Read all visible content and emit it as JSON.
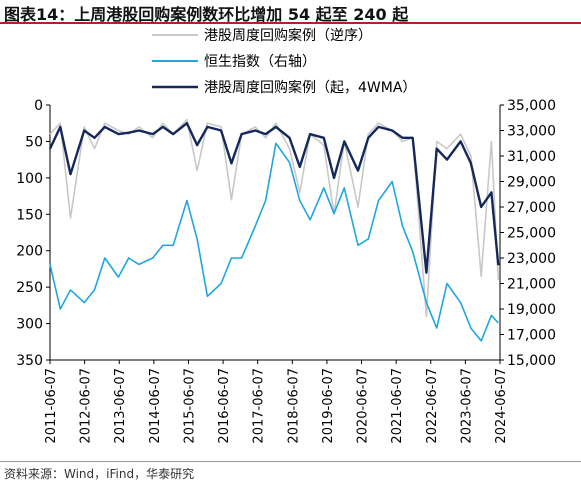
{
  "title": "图表14：上周港股回购案例数环比增加 54 起至 240 起",
  "source": "资料来源：Wind，iFind，华泰研究",
  "chart_data": {
    "type": "line",
    "x_labels": [
      "2011-06-07",
      "2012-06-07",
      "2013-06-07",
      "2014-06-07",
      "2015-06-07",
      "2016-06-07",
      "2017-06-07",
      "2018-06-07",
      "2019-06-07",
      "2020-06-07",
      "2021-06-07",
      "2022-06-07",
      "2023-06-07",
      "2024-06-07"
    ],
    "left_axis": {
      "ticks": [
        "0",
        "50",
        "100",
        "150",
        "200",
        "250",
        "300",
        "350"
      ],
      "min": 0,
      "max": 350,
      "inverted": true
    },
    "right_axis": {
      "ticks": [
        "15,000",
        "17,000",
        "19,000",
        "21,000",
        "23,000",
        "25,000",
        "27,000",
        "29,000",
        "31,000",
        "33,000",
        "35,000"
      ],
      "min": 15000,
      "max": 35000
    },
    "legend_placement": "top",
    "series": [
      {
        "name": "港股周度回购案例（逆序）",
        "axis": "left",
        "color": "#c8c8c8",
        "x": [
          2011.4,
          2011.7,
          2012.0,
          2012.4,
          2012.7,
          2013.0,
          2013.4,
          2013.7,
          2014.0,
          2014.4,
          2014.7,
          2015.0,
          2015.4,
          2015.7,
          2016.0,
          2016.4,
          2016.7,
          2017.0,
          2017.4,
          2017.7,
          2018.0,
          2018.4,
          2018.7,
          2019.0,
          2019.4,
          2019.7,
          2020.0,
          2020.4,
          2020.7,
          2021.0,
          2021.4,
          2021.7,
          2022.0,
          2022.4,
          2022.7,
          2023.0,
          2023.4,
          2023.7,
          2024.0,
          2024.3,
          2024.5
        ],
        "values": [
          40,
          25,
          155,
          30,
          60,
          25,
          35,
          40,
          30,
          45,
          25,
          40,
          20,
          90,
          25,
          30,
          130,
          40,
          30,
          45,
          25,
          60,
          120,
          40,
          55,
          150,
          50,
          140,
          40,
          25,
          35,
          50,
          45,
          290,
          50,
          60,
          40,
          70,
          235,
          50,
          240
        ]
      },
      {
        "name": "恒生指数（右轴）",
        "axis": "right",
        "color": "#1fa6e0",
        "x": [
          2011.4,
          2011.7,
          2012.0,
          2012.4,
          2012.7,
          2013.0,
          2013.4,
          2013.7,
          2014.0,
          2014.4,
          2014.7,
          2015.0,
          2015.4,
          2015.7,
          2016.0,
          2016.4,
          2016.7,
          2017.0,
          2017.4,
          2017.7,
          2018.0,
          2018.4,
          2018.7,
          2019.0,
          2019.4,
          2019.7,
          2020.0,
          2020.4,
          2020.7,
          2021.0,
          2021.4,
          2021.7,
          2022.0,
          2022.4,
          2022.7,
          2023.0,
          2023.4,
          2023.7,
          2024.0,
          2024.3,
          2024.5
        ],
        "values": [
          22500,
          19000,
          20500,
          19500,
          20500,
          23000,
          21500,
          23000,
          22500,
          23000,
          24000,
          24000,
          27500,
          24500,
          20000,
          21000,
          23000,
          23000,
          25500,
          27500,
          32000,
          30500,
          27500,
          26000,
          28500,
          26500,
          28500,
          24000,
          24500,
          27500,
          29000,
          25500,
          23500,
          19500,
          17500,
          21000,
          19500,
          17500,
          16500,
          18500,
          17900
        ]
      },
      {
        "name": "港股周度回购案例（起，4WMA）",
        "axis": "left",
        "color": "#14285a",
        "x": [
          2011.4,
          2011.7,
          2012.0,
          2012.4,
          2012.7,
          2013.0,
          2013.4,
          2013.7,
          2014.0,
          2014.4,
          2014.7,
          2015.0,
          2015.4,
          2015.7,
          2016.0,
          2016.4,
          2016.7,
          2017.0,
          2017.4,
          2017.7,
          2018.0,
          2018.4,
          2018.7,
          2019.0,
          2019.4,
          2019.7,
          2020.0,
          2020.4,
          2020.7,
          2021.0,
          2021.4,
          2021.7,
          2022.0,
          2022.4,
          2022.7,
          2023.0,
          2023.4,
          2023.7,
          2024.0,
          2024.3,
          2024.5
        ],
        "values": [
          60,
          30,
          95,
          35,
          45,
          30,
          40,
          38,
          35,
          40,
          30,
          40,
          25,
          55,
          30,
          35,
          80,
          40,
          35,
          40,
          30,
          45,
          85,
          40,
          45,
          100,
          50,
          90,
          45,
          30,
          35,
          45,
          45,
          230,
          60,
          75,
          50,
          80,
          140,
          120,
          220
        ]
      }
    ]
  }
}
